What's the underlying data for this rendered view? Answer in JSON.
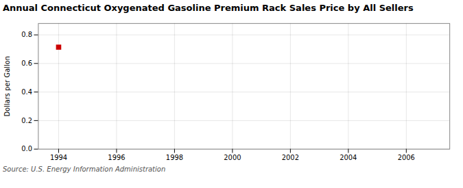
{
  "chart_data": {
    "type": "scatter",
    "title": "Annual Connecticut Oxygenated Gasoline Premium Rack Sales Price by All Sellers",
    "ylabel": "Dollars per Gallon",
    "annotations": [
      "Source: U.S. Energy Information Administration"
    ],
    "x": [
      1994
    ],
    "values": [
      0.714
    ],
    "color": "#cc0000",
    "marker": "square",
    "xlim": [
      1993.3,
      2007.5
    ],
    "ylim": [
      0.0,
      0.88
    ],
    "xticks": [
      1994,
      1996,
      1998,
      2000,
      2002,
      2004,
      2006
    ],
    "yticks": [
      {
        "value": 0.0,
        "label": "0.0"
      },
      0.2,
      0.4,
      0.6,
      0.8
    ],
    "grid": true
  }
}
